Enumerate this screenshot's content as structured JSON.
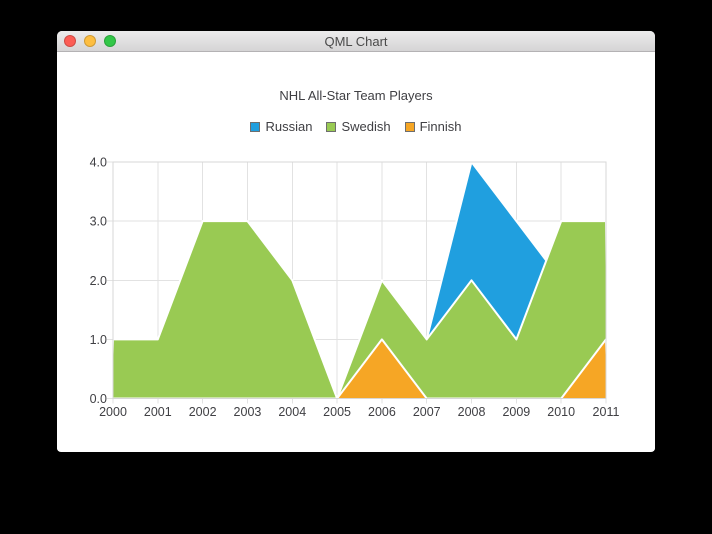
{
  "window": {
    "title": "QML Chart",
    "traffic_lights": {
      "close": "#fc5d55",
      "minimize": "#fdbe41",
      "zoom": "#33c748"
    }
  },
  "chart_data": {
    "type": "area",
    "title": "NHL All-Star Team Players",
    "x": [
      2000,
      2001,
      2002,
      2003,
      2004,
      2005,
      2006,
      2007,
      2008,
      2009,
      2010,
      2011
    ],
    "series": [
      {
        "name": "Russian",
        "color": "#209fdf",
        "values": [
          1,
          1,
          1,
          1,
          1,
          0,
          1,
          1,
          4,
          3,
          2,
          1
        ]
      },
      {
        "name": "Swedish",
        "color": "#99ca53",
        "values": [
          1,
          1,
          3,
          3,
          2,
          0,
          2,
          1,
          2,
          1,
          3,
          3
        ]
      },
      {
        "name": "Finnish",
        "color": "#f6a625",
        "values": [
          0,
          0,
          0,
          0,
          0,
          0,
          1,
          0,
          0,
          0,
          0,
          1
        ]
      }
    ],
    "xlabel": "",
    "ylabel": "",
    "xlim": [
      2000,
      2011
    ],
    "ylim": [
      0,
      4
    ],
    "xtick_labels": [
      "2000",
      "2001",
      "2002",
      "2003",
      "2004",
      "2005",
      "2006",
      "2007",
      "2008",
      "2009",
      "2010",
      "2011"
    ],
    "ytick_labels": [
      "0.0",
      "1.0",
      "2.0",
      "3.0",
      "4.0"
    ],
    "grid": true,
    "legend_position": "top",
    "area_border_color": "#ffffff",
    "grid_color": "#e2e2e2",
    "plot_border_color": "#d7d7d7",
    "label_color": "#404044"
  }
}
